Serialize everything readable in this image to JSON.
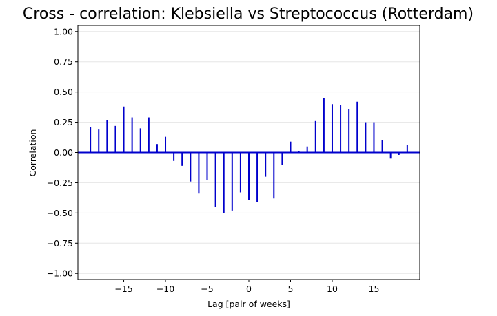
{
  "chart_data": {
    "type": "bar",
    "title": "Cross - correlation: Klebsiella vs Streptococcus (Rotterdam)",
    "xlabel": "Lag [pair of weeks]",
    "ylabel": "Correlation",
    "xlim": [
      -20.5,
      20.5
    ],
    "ylim": [
      -1.05,
      1.05
    ],
    "grid": "y",
    "bar_color": "#0000cc",
    "zero_line_color": "#0000cc",
    "x_ticks": [
      -15,
      -10,
      -5,
      0,
      5,
      10,
      15
    ],
    "x_tick_labels": [
      "−15",
      "−10",
      "−5",
      "0",
      "5",
      "10",
      "15"
    ],
    "y_ticks": [
      -1.0,
      -0.75,
      -0.5,
      -0.25,
      0.0,
      0.25,
      0.5,
      0.75,
      1.0
    ],
    "y_tick_labels": [
      "−1.00",
      "−0.75",
      "−0.50",
      "−0.25",
      "0.00",
      "0.25",
      "0.50",
      "0.75",
      "1.00"
    ],
    "x": [
      -19,
      -18,
      -17,
      -16,
      -15,
      -14,
      -13,
      -12,
      -11,
      -10,
      -9,
      -8,
      -7,
      -6,
      -5,
      -4,
      -3,
      -2,
      -1,
      0,
      1,
      2,
      3,
      4,
      5,
      6,
      7,
      8,
      9,
      10,
      11,
      12,
      13,
      14,
      15,
      16,
      17,
      18,
      19
    ],
    "values": [
      0.21,
      0.19,
      0.27,
      0.22,
      0.38,
      0.29,
      0.2,
      0.29,
      0.07,
      0.13,
      -0.07,
      -0.11,
      -0.24,
      -0.34,
      -0.23,
      -0.45,
      -0.5,
      -0.48,
      -0.33,
      -0.39,
      -0.41,
      -0.2,
      -0.38,
      -0.1,
      0.09,
      0.01,
      0.05,
      0.26,
      0.45,
      0.4,
      0.39,
      0.36,
      0.42,
      0.25,
      0.25,
      0.1,
      -0.05,
      -0.02,
      0.06
    ]
  }
}
